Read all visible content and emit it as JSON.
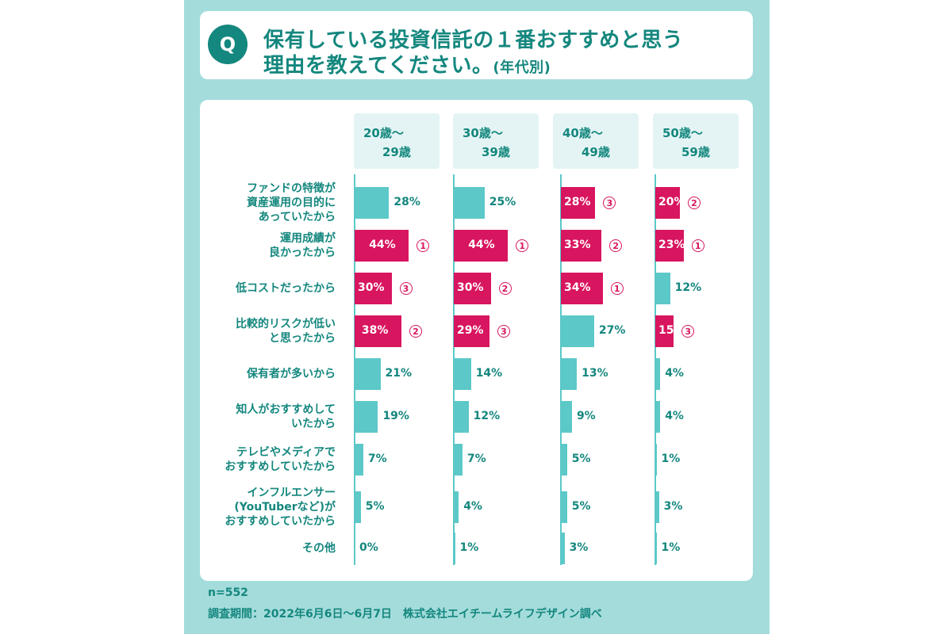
{
  "title": {
    "badge": "Q",
    "line1": "保有している投資信託の１番おすすめと思う",
    "line2": "理由を教えてください。",
    "suffix": "(年代別)"
  },
  "colors": {
    "top3": "#d8155f",
    "other": "#5cc8c8",
    "accent": "#14877e"
  },
  "chart_data": {
    "type": "bar",
    "orientation": "horizontal",
    "categories": [
      [
        "ファンドの特徴が",
        "資産運用の目的に",
        "あっていたから"
      ],
      [
        "運用成績が",
        "良かったから"
      ],
      [
        "低コストだったから"
      ],
      [
        "比較的リスクが低い",
        "と思ったから"
      ],
      [
        "保有者が多いから"
      ],
      [
        "知人がおすすめして",
        "いたから"
      ],
      [
        "テレビやメディアで",
        "おすすめしていたから"
      ],
      [
        "インフルエンサー",
        "(YouTuberなど)が",
        "おすすめしていたから"
      ],
      [
        "その他"
      ]
    ],
    "series": [
      {
        "name": [
          "20歳～",
          "29歳"
        ],
        "values": [
          28,
          44,
          30,
          38,
          21,
          19,
          7,
          5,
          0
        ],
        "ranks": [
          null,
          "①",
          "③",
          "②",
          null,
          null,
          null,
          null,
          null
        ]
      },
      {
        "name": [
          "30歳～",
          "39歳"
        ],
        "values": [
          25,
          44,
          30,
          29,
          14,
          12,
          7,
          4,
          1
        ],
        "ranks": [
          null,
          "①",
          "②",
          "③",
          null,
          null,
          null,
          null,
          null
        ]
      },
      {
        "name": [
          "40歳～",
          "49歳"
        ],
        "values": [
          28,
          33,
          34,
          27,
          13,
          9,
          5,
          5,
          3
        ],
        "ranks": [
          "③",
          "②",
          "①",
          null,
          null,
          null,
          null,
          null,
          null
        ]
      },
      {
        "name": [
          "50歳～",
          "59歳"
        ],
        "values": [
          20,
          23,
          12,
          15,
          4,
          4,
          1,
          3,
          1
        ],
        "ranks": [
          "②",
          "①",
          null,
          "③",
          null,
          null,
          null,
          null,
          null
        ]
      }
    ],
    "unit": "%",
    "xlim": [
      0,
      100
    ]
  },
  "footer": {
    "n": "n=552",
    "survey": "調査期間：2022年6月6日～6月7日　株式会社エイチームライフデザイン調べ"
  }
}
